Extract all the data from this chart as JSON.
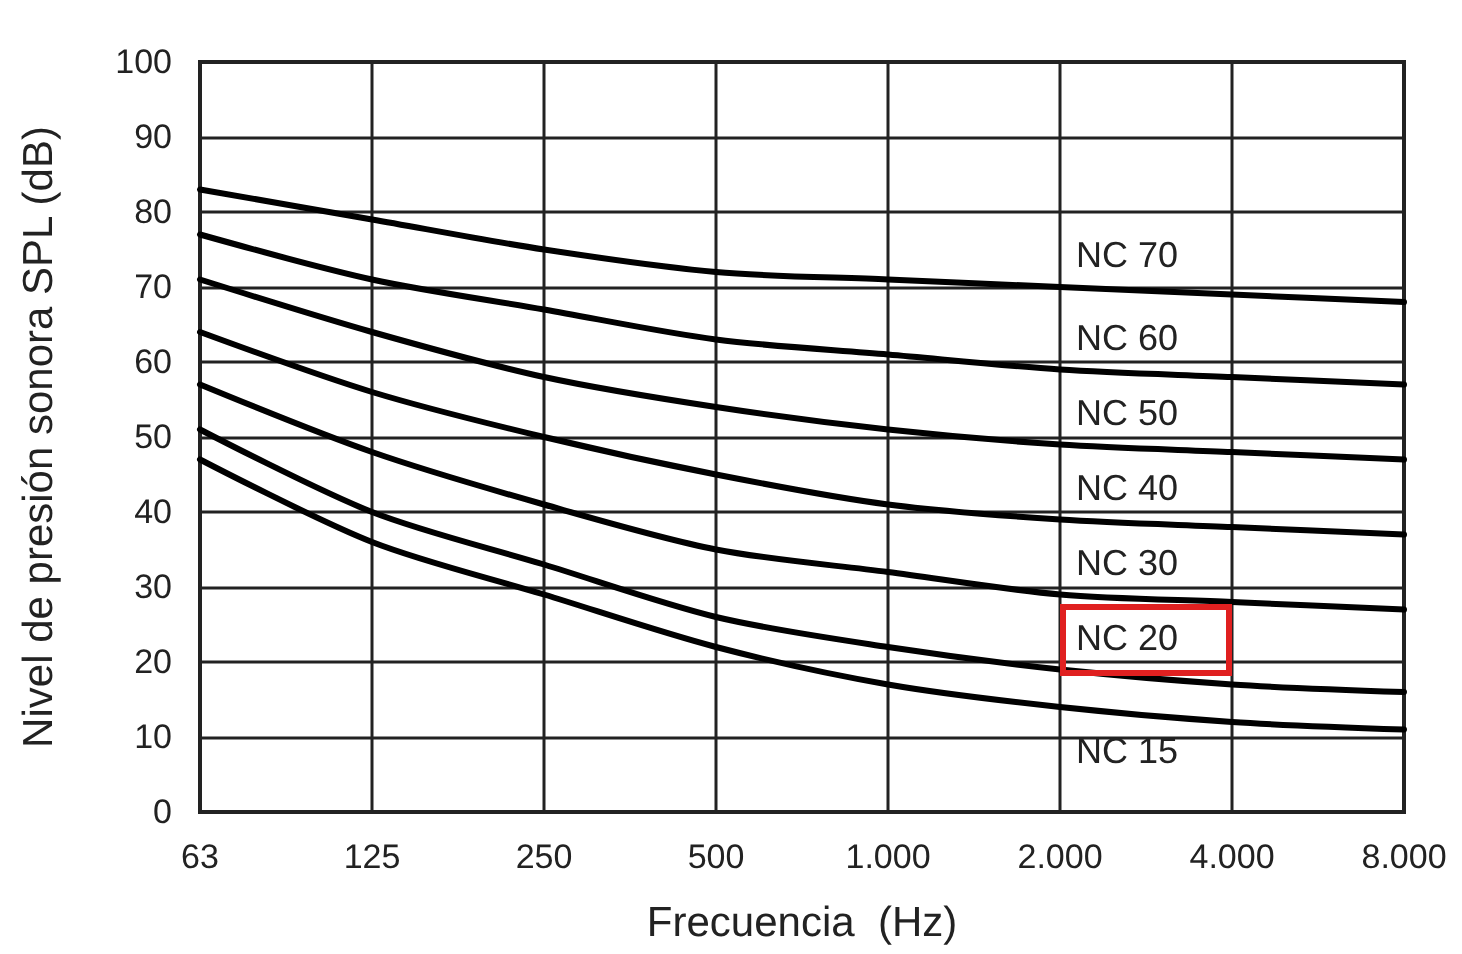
{
  "chart_data": {
    "type": "line",
    "xlabel": "Frecuencia  (Hz)",
    "ylabel": "Nivel de presión sonora SPL (dB)",
    "categories": [
      "63",
      "125",
      "250",
      "500",
      "1.000",
      "2.000",
      "4.000",
      "8.000"
    ],
    "ylim": [
      0,
      100
    ],
    "yticks": [
      0,
      10,
      20,
      30,
      40,
      50,
      60,
      70,
      80,
      90,
      100
    ],
    "grid": true,
    "marker": "none",
    "line_style": "solid",
    "series": [
      {
        "name": "NC 70",
        "color": "#000000",
        "values": [
          83,
          79,
          75,
          72,
          71,
          70,
          69,
          68
        ]
      },
      {
        "name": "NC 60",
        "color": "#000000",
        "values": [
          77,
          71,
          67,
          63,
          61,
          59,
          58,
          57
        ]
      },
      {
        "name": "NC 50",
        "color": "#000000",
        "values": [
          71,
          64,
          58,
          54,
          51,
          49,
          48,
          47
        ]
      },
      {
        "name": "NC 40",
        "color": "#000000",
        "values": [
          64,
          56,
          50,
          45,
          41,
          39,
          38,
          37
        ]
      },
      {
        "name": "NC 30",
        "color": "#000000",
        "values": [
          57,
          48,
          41,
          35,
          32,
          29,
          28,
          27
        ]
      },
      {
        "name": "NC 20",
        "color": "#000000",
        "values": [
          51,
          40,
          33,
          26,
          22,
          19,
          17,
          16
        ]
      },
      {
        "name": "NC 15",
        "color": "#000000",
        "values": [
          47,
          36,
          29,
          22,
          17,
          14,
          12,
          11
        ]
      }
    ]
  }
}
